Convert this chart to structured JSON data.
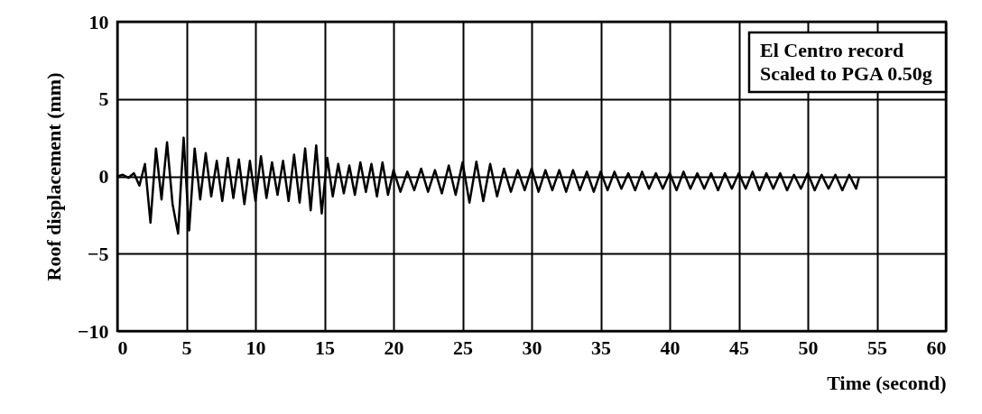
{
  "chart_data": {
    "type": "line",
    "xlabel": "Time (second)",
    "ylabel": "Roof displacement (mm)",
    "annotations": [
      "El Centro record",
      "Scaled to PGA 0.50g"
    ],
    "xlim": [
      0,
      60
    ],
    "xticks": [
      0,
      5,
      10,
      15,
      20,
      25,
      30,
      35,
      40,
      45,
      50,
      55,
      60
    ],
    "ylim": [
      -10,
      10
    ],
    "yticks": [
      -10,
      -5,
      0,
      5,
      10
    ],
    "grid": true,
    "line_style": "solid",
    "series": [
      {
        "color": "#000000",
        "x": [
          0,
          0.4,
          0.8,
          1.2,
          1.6,
          2.0,
          2.4,
          2.8,
          3.2,
          3.6,
          4.0,
          4.4,
          4.8,
          5.2,
          5.6,
          6.0,
          6.4,
          6.8,
          7.2,
          7.6,
          8.0,
          8.4,
          8.8,
          9.2,
          9.6,
          10.0,
          10.4,
          10.8,
          11.2,
          11.6,
          12.0,
          12.4,
          12.8,
          13.2,
          13.6,
          14.0,
          14.4,
          14.8,
          15.2,
          15.6,
          16.0,
          16.4,
          16.8,
          17.2,
          17.6,
          18.0,
          18.4,
          18.8,
          19.2,
          19.6,
          20.0,
          20.5,
          21.0,
          21.5,
          22.0,
          22.5,
          23.0,
          23.5,
          24.0,
          24.5,
          25.0,
          25.5,
          26.0,
          26.5,
          27.0,
          27.5,
          28.0,
          28.5,
          29.0,
          29.5,
          30.0,
          30.5,
          31.0,
          31.5,
          32.0,
          32.5,
          33.0,
          33.5,
          34.0,
          34.5,
          35.0,
          35.5,
          36.0,
          36.5,
          37.0,
          37.5,
          38.0,
          38.5,
          39.0,
          39.5,
          40.0,
          40.5,
          41.0,
          41.5,
          42.0,
          42.5,
          43.0,
          43.5,
          44.0,
          44.5,
          45.0,
          45.5,
          46.0,
          46.5,
          47.0,
          47.5,
          48.0,
          48.5,
          49.0,
          49.5,
          50.0,
          50.5,
          51.0,
          51.5,
          52.0,
          52.5,
          53.0,
          53.5,
          53.7
        ],
        "values": [
          0.0,
          0.1,
          -0.1,
          0.2,
          -0.6,
          0.8,
          -3.0,
          1.8,
          -1.5,
          2.2,
          -1.8,
          -3.7,
          2.5,
          -3.5,
          1.8,
          -1.5,
          1.5,
          -1.3,
          1.0,
          -1.6,
          1.2,
          -1.4,
          1.1,
          -1.8,
          1.0,
          -1.6,
          1.3,
          -1.4,
          0.9,
          -1.2,
          1.0,
          -1.6,
          1.4,
          -1.7,
          1.8,
          -2.2,
          2.0,
          -2.4,
          1.2,
          -1.3,
          0.8,
          -1.1,
          0.7,
          -1.2,
          0.9,
          -1.0,
          0.8,
          -1.3,
          0.9,
          -1.2,
          0.4,
          -1.0,
          0.3,
          -0.9,
          0.5,
          -1.0,
          0.4,
          -1.1,
          0.7,
          -1.2,
          0.9,
          -1.7,
          0.95,
          -1.6,
          0.8,
          -1.3,
          0.5,
          -1.0,
          0.4,
          -0.9,
          0.5,
          -1.0,
          0.4,
          -0.9,
          0.4,
          -1.0,
          0.4,
          -0.9,
          0.3,
          -1.0,
          0.3,
          -0.9,
          0.3,
          -0.8,
          0.2,
          -0.9,
          0.3,
          -0.8,
          0.2,
          -0.8,
          0.2,
          -0.9,
          0.3,
          -0.8,
          0.2,
          -0.8,
          0.2,
          -0.9,
          0.2,
          -0.8,
          0.2,
          -0.8,
          0.3,
          -0.9,
          0.2,
          -0.8,
          0.2,
          -0.9,
          0.1,
          -0.8,
          0.2,
          -0.9,
          0.1,
          -0.8,
          0.1,
          -0.9,
          0.1,
          -0.8,
          -0.1
        ]
      }
    ]
  }
}
